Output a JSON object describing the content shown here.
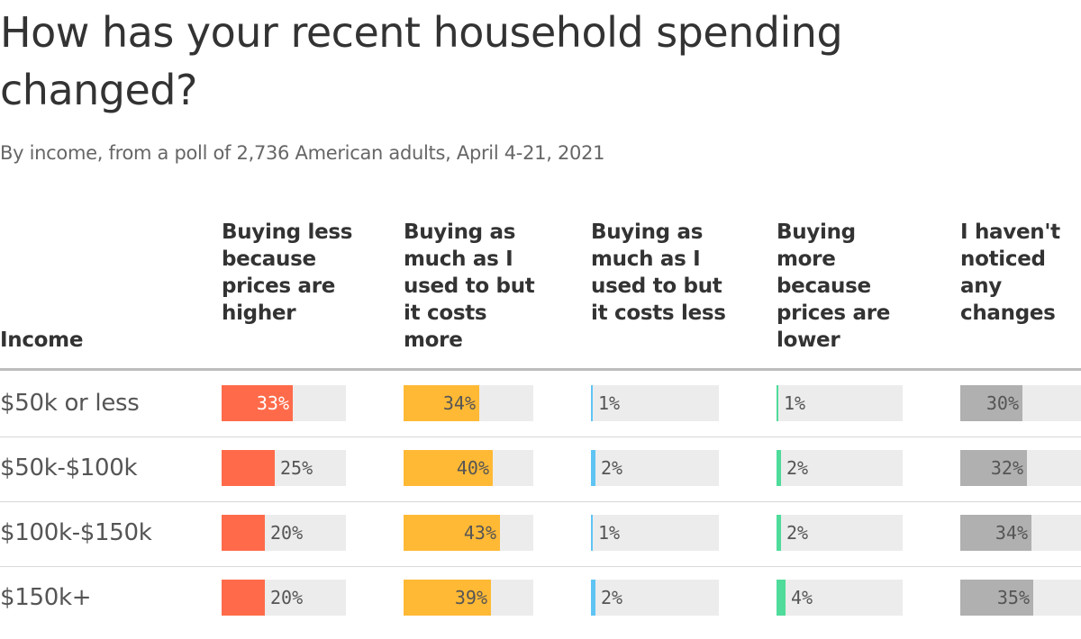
{
  "title": "How has your recent household spending changed?",
  "subtitle": "By income, from a poll of 2,736 American adults, April 4-21, 2021",
  "row_header": "Income",
  "colors": {
    "less_higher": "#ff6b4a",
    "same_more": "#ffb935",
    "same_less": "#5fc4f4",
    "more_lower": "#4fdb9a",
    "no_change": "#b0b0b0",
    "track": "#ececec"
  },
  "chart_data": {
    "type": "bar",
    "categories": [
      "$50k or less",
      "$50k-$100k",
      "$100k-$150k",
      "$150k+"
    ],
    "xlim": [
      0,
      100
    ],
    "series": [
      {
        "name": "Buying less because prices are higher",
        "values": [
          33,
          25,
          20,
          20
        ],
        "labels": [
          "33%",
          "25%",
          "20%",
          "20%"
        ]
      },
      {
        "name": "Buying as much as I used to but it costs more",
        "values": [
          34,
          40,
          43,
          39
        ],
        "labels": [
          "34%",
          "40%",
          "43%",
          "39%"
        ]
      },
      {
        "name": "Buying as much as I used to but it costs less",
        "values": [
          1,
          2,
          1,
          2
        ],
        "labels": [
          "1%",
          "2%",
          "1%",
          "2%"
        ]
      },
      {
        "name": "Buying more because prices are lower",
        "values": [
          1,
          2,
          2,
          4
        ],
        "labels": [
          "1%",
          "2%",
          "2%",
          "4%"
        ]
      },
      {
        "name": "I haven't noticed any changes",
        "values": [
          30,
          32,
          34,
          35
        ],
        "labels": [
          "30%",
          "32%",
          "34%",
          "35%"
        ]
      }
    ]
  }
}
